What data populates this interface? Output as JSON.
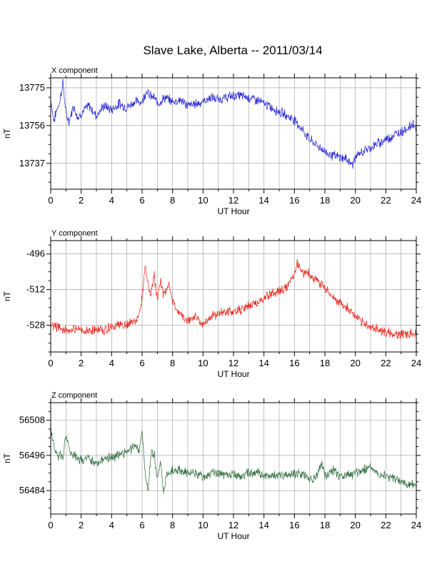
{
  "title": "Slave Lake, Alberta -- 2011/03/14",
  "colors": {
    "x": "#1f1fcf",
    "y": "#e8231b",
    "z": "#2e6b3c",
    "grid": "#9a9a9a"
  },
  "chart_data": [
    {
      "type": "line",
      "name": "X component",
      "panel_title": "X component",
      "color": "#1f1fcf",
      "xlabel": "UT Hour",
      "ylabel": "nT",
      "xlim": [
        0,
        24
      ],
      "ylim": [
        13724,
        13780
      ],
      "xticks": [
        0,
        2,
        4,
        6,
        8,
        10,
        12,
        14,
        16,
        18,
        20,
        22,
        24
      ],
      "yticks": [
        13737,
        13756,
        13775
      ],
      "x": [
        0,
        0.2,
        0.4,
        0.6,
        0.8,
        1,
        1.2,
        1.5,
        1.8,
        2,
        2.5,
        3,
        3.5,
        4,
        4.5,
        5,
        5.5,
        6,
        6.3,
        6.5,
        6.8,
        7,
        7.5,
        8,
        8.5,
        9,
        9.5,
        10,
        10.5,
        11,
        11.5,
        12,
        12.5,
        13,
        13.5,
        14,
        14.5,
        15,
        15.5,
        16,
        16.5,
        17,
        17.5,
        18,
        18.5,
        19,
        19.5,
        19.8,
        20,
        20.5,
        21,
        21.5,
        22,
        22.5,
        23,
        23.5,
        23.8,
        24
      ],
      "values": [
        13770,
        13758,
        13764,
        13768,
        13778,
        13762,
        13758,
        13766,
        13760,
        13762,
        13766,
        13761,
        13766,
        13764,
        13767,
        13765,
        13768,
        13768,
        13774,
        13771,
        13770,
        13767,
        13770,
        13768,
        13769,
        13766,
        13767,
        13768,
        13770,
        13769,
        13770,
        13771,
        13771,
        13770,
        13769,
        13767,
        13765,
        13763,
        13761,
        13759,
        13754,
        13749,
        13746,
        13743,
        13741,
        13740,
        13739,
        13736,
        13740,
        13743,
        13745,
        13747,
        13749,
        13751,
        13753,
        13755,
        13757,
        13755
      ]
    },
    {
      "type": "line",
      "name": "Y component",
      "panel_title": "Y component",
      "color": "#e8231b",
      "xlabel": "UT Hour",
      "ylabel": "nT",
      "xlim": [
        0,
        24
      ],
      "ylim": [
        -540,
        -490
      ],
      "xticks": [
        0,
        2,
        4,
        6,
        8,
        10,
        12,
        14,
        16,
        18,
        20,
        22,
        24
      ],
      "yticks": [
        -528,
        -512,
        -496
      ],
      "x": [
        0,
        0.5,
        1,
        1.5,
        2,
        2.5,
        3,
        3.5,
        4,
        4.5,
        5,
        5.5,
        5.8,
        6,
        6.2,
        6.4,
        6.6,
        6.8,
        7,
        7.2,
        7.4,
        7.6,
        7.8,
        8,
        8.5,
        9,
        9.5,
        10,
        10.5,
        11,
        11.5,
        12,
        12.5,
        13,
        13.5,
        14,
        14.5,
        15,
        15.5,
        16,
        16.2,
        16.5,
        17,
        17.5,
        18,
        18.5,
        19,
        19.5,
        20,
        20.5,
        21,
        21.5,
        22,
        22.5,
        23,
        23.5,
        24
      ],
      "values": [
        -528,
        -529,
        -530,
        -530,
        -530,
        -531,
        -530,
        -530,
        -529,
        -528,
        -528,
        -526,
        -524,
        -515,
        -502,
        -510,
        -514,
        -505,
        -518,
        -508,
        -514,
        -512,
        -510,
        -518,
        -523,
        -526,
        -524,
        -528,
        -524,
        -523,
        -522,
        -522,
        -521,
        -519,
        -518,
        -516,
        -514,
        -513,
        -511,
        -506,
        -500,
        -504,
        -505,
        -508,
        -511,
        -515,
        -518,
        -520,
        -524,
        -527,
        -529,
        -530,
        -531,
        -532,
        -532,
        -532,
        -531
      ]
    },
    {
      "type": "line",
      "name": "Z component",
      "panel_title": "Z component",
      "color": "#2e6b3c",
      "xlabel": "UT Hour",
      "ylabel": "nT",
      "xlim": [
        0,
        24
      ],
      "ylim": [
        56476,
        56514
      ],
      "xticks": [
        0,
        2,
        4,
        6,
        8,
        10,
        12,
        14,
        16,
        18,
        20,
        22,
        24
      ],
      "yticks": [
        56484,
        56496,
        56508
      ],
      "x": [
        0,
        0.3,
        0.5,
        0.8,
        1,
        1.3,
        1.6,
        2,
        2.5,
        3,
        3.5,
        4,
        4.5,
        5,
        5.5,
        5.8,
        6,
        6.2,
        6.4,
        6.6,
        6.8,
        7,
        7.2,
        7.4,
        7.6,
        7.8,
        8,
        8.5,
        9,
        9.5,
        10,
        10.5,
        11,
        11.5,
        12,
        12.5,
        13,
        13.5,
        14,
        14.5,
        15,
        15.5,
        16,
        16.5,
        17,
        17.5,
        17.8,
        18,
        18.5,
        19,
        19.5,
        20,
        20.5,
        21,
        21.5,
        22,
        22.5,
        23,
        23.5,
        24
      ],
      "values": [
        56505,
        56497,
        56496,
        56496,
        56503,
        56497,
        56496,
        56494,
        56495,
        56493,
        56495,
        56495,
        56497,
        56497,
        56499,
        56497,
        56505,
        56490,
        56484,
        56498,
        56496,
        56487,
        56495,
        56483,
        56489,
        56490,
        56491,
        56491,
        56490,
        56490,
        56489,
        56490,
        56490,
        56489,
        56490,
        56489,
        56490,
        56490,
        56489,
        56489,
        56489,
        56489,
        56490,
        56490,
        56488,
        56489,
        56494,
        56489,
        56491,
        56489,
        56489,
        56490,
        56491,
        56492,
        56490,
        56489,
        56488,
        56487,
        56486,
        56486
      ]
    }
  ]
}
